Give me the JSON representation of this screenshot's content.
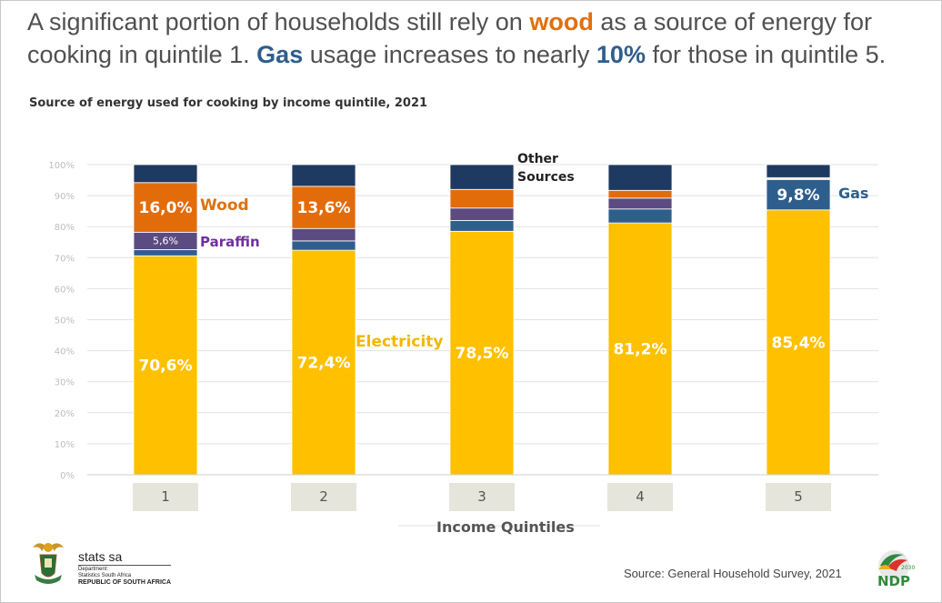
{
  "headline": {
    "part1": "A significant portion of households still rely on ",
    "wood": "wood",
    "part2": " as a source of energy for cooking in quintile 1. ",
    "gas": "Gas",
    "part3": " usage increases to nearly ",
    "ten": "10%",
    "part4": " for those in quintile 5."
  },
  "colors": {
    "electricity": "#ffc000",
    "gas": "#2e5e8c",
    "paraffin": "#5c4a82",
    "wood": "#e36c0a",
    "other": "#1f3a60",
    "wood_text": "#e0700f",
    "gas_text": "#2e5e8c",
    "paraffin_text": "#7030a0",
    "electricity_text": "#f0b800"
  },
  "chart_data": {
    "type": "bar",
    "stacked": true,
    "title": "Source of energy used for cooking by income quintile, 2021",
    "xlabel": "Income Quintiles",
    "ylabel": "",
    "ylim": [
      0,
      100
    ],
    "yticks": [
      "0%",
      "10%",
      "20%",
      "30%",
      "40%",
      "50%",
      "60%",
      "70%",
      "80%",
      "90%",
      "100%"
    ],
    "categories": [
      "1",
      "2",
      "3",
      "4",
      "5"
    ],
    "series": [
      {
        "name": "Electricity",
        "values": [
          70.6,
          72.4,
          78.5,
          81.2,
          85.4
        ],
        "labels": [
          "70,6%",
          "72,4%",
          "78,5%",
          "81,2%",
          "85,4%"
        ]
      },
      {
        "name": "Gas",
        "values": [
          2.0,
          3.0,
          3.5,
          4.5,
          9.8
        ],
        "labels": [
          "",
          "",
          "",
          "",
          "9,8%"
        ]
      },
      {
        "name": "Paraffin",
        "values": [
          5.6,
          4.0,
          4.0,
          3.5,
          0.3
        ],
        "labels": [
          "5,6%",
          "",
          "",
          "",
          ""
        ]
      },
      {
        "name": "Wood",
        "values": [
          16.0,
          13.6,
          6.0,
          2.5,
          0.3
        ],
        "labels": [
          "16,0%",
          "13,6%",
          "",
          "",
          ""
        ]
      },
      {
        "name": "Other Sources",
        "values": [
          5.8,
          7.0,
          8.0,
          8.3,
          4.2
        ],
        "labels": [
          "",
          "",
          "",
          "",
          ""
        ]
      }
    ],
    "annotations": {
      "wood": "Wood",
      "paraffin": "Paraffin",
      "electricity": "Electricity",
      "other_line1": "Other",
      "other_line2": "Sources",
      "gas": "Gas"
    }
  },
  "footer": {
    "logo_main": "stats sa",
    "logo_sub1": "Department:",
    "logo_sub2": "Statistics South Africa",
    "logo_sub3": "REPUBLIC OF SOUTH AFRICA",
    "source": "Source: General Household Survey, 2021",
    "ndp_label": "NDP",
    "ndp_year": "2030"
  }
}
